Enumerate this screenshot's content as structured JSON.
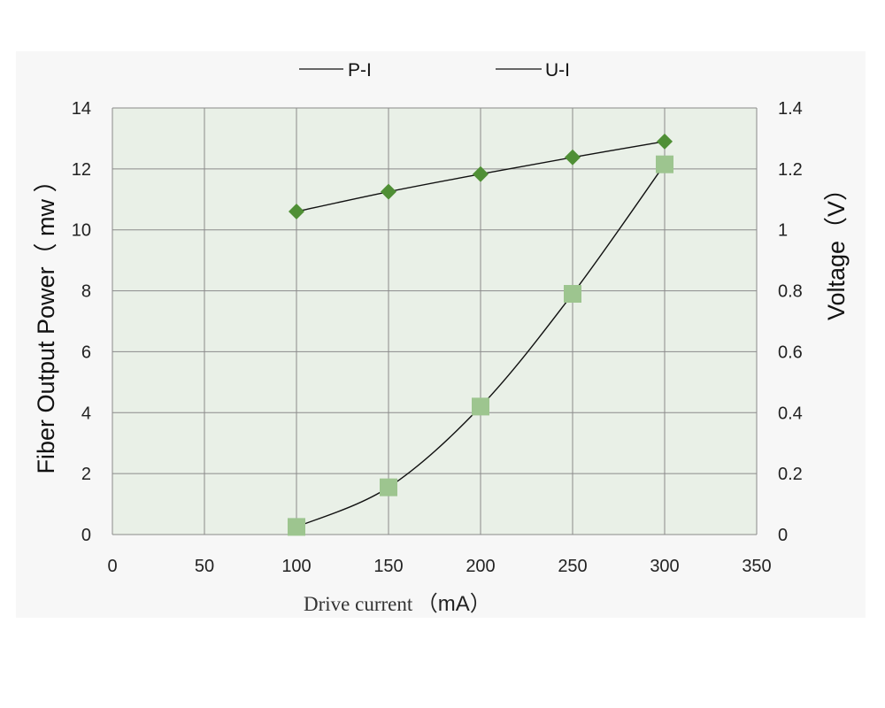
{
  "chart_data": {
    "type": "line",
    "legend": {
      "position": "top",
      "entries": [
        "P-I",
        "U-I"
      ]
    },
    "x": [
      100,
      150,
      200,
      250,
      300
    ],
    "xlim": [
      0,
      350
    ],
    "x_ticks": [
      "0",
      "50",
      "100",
      "150",
      "200",
      "250",
      "300",
      "350"
    ],
    "xlabel_text": "Drive current",
    "xlabel_unit": "（mA）",
    "ylabel": "Fiber Output Power（ mw ）",
    "ylim": [
      0,
      14
    ],
    "y_ticks": [
      "0",
      "2",
      "4",
      "6",
      "8",
      "10",
      "12",
      "14"
    ],
    "y2label": "Voltage（V）",
    "y2lim": [
      0,
      1.4
    ],
    "y2_ticks": [
      "0",
      "0.2",
      "0.4",
      "0.6",
      "0.8",
      "1",
      "1.2",
      "1.4"
    ],
    "grid": true,
    "series": [
      {
        "name": "P-I",
        "axis": "left",
        "marker": "square",
        "color": "#9dc58f",
        "values": [
          0.25,
          1.55,
          4.2,
          7.9,
          12.15
        ]
      },
      {
        "name": "U-I",
        "axis": "right",
        "marker": "diamond",
        "color": "#4f8f35",
        "values": [
          1.06,
          1.125,
          1.183,
          1.238,
          1.29
        ]
      }
    ],
    "plot_background": "#e9f0e7",
    "grid_color": "#8a8a8a"
  }
}
